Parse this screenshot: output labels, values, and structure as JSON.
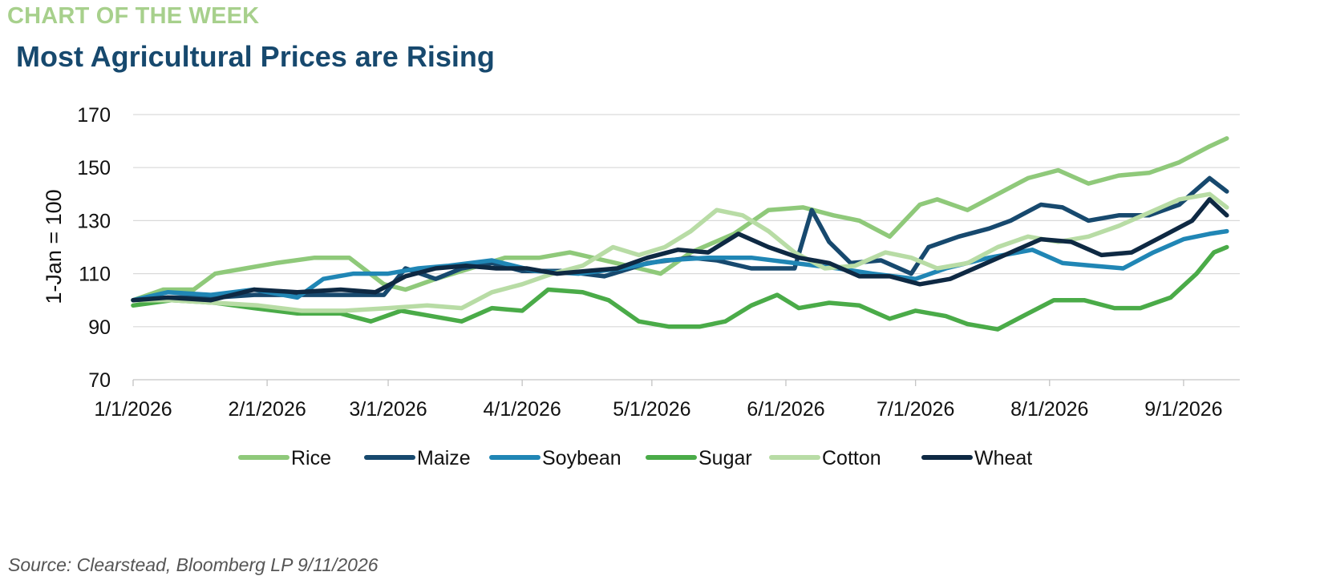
{
  "header": {
    "kicker": "CHART OF THE WEEK",
    "title": "Most Agricultural Prices are Rising"
  },
  "footer": {
    "source": "Source: Clearstead, Bloomberg LP 9/11/2026"
  },
  "chart_data": {
    "type": "line",
    "title": "Most Agricultural Prices are Rising",
    "xlabel": "",
    "ylabel": "1-Jan = 100",
    "ylim": [
      70,
      170
    ],
    "yticks": [
      70,
      90,
      110,
      130,
      150,
      170
    ],
    "xlim": [
      "2026-01-01",
      "2026-09-14"
    ],
    "xticks": [
      "1/1/2026",
      "2/1/2026",
      "3/1/2026",
      "4/1/2026",
      "5/1/2026",
      "6/1/2026",
      "7/1/2026",
      "8/1/2026",
      "9/1/2026"
    ],
    "xtick_dates": [
      "2026-01-01",
      "2026-02-01",
      "2026-03-01",
      "2026-04-01",
      "2026-05-01",
      "2026-06-01",
      "2026-07-01",
      "2026-08-01",
      "2026-09-01"
    ],
    "grid": "horizontal",
    "legend": "bottom",
    "series": [
      {
        "name": "Rice",
        "color": "#8fc97a",
        "points": [
          [
            "2026-01-01",
            100
          ],
          [
            "2026-01-08",
            104
          ],
          [
            "2026-01-15",
            104
          ],
          [
            "2026-01-20",
            110
          ],
          [
            "2026-01-27",
            112
          ],
          [
            "2026-02-03",
            114
          ],
          [
            "2026-02-12",
            116
          ],
          [
            "2026-02-20",
            116
          ],
          [
            "2026-02-28",
            106
          ],
          [
            "2026-03-05",
            104
          ],
          [
            "2026-03-12",
            108
          ],
          [
            "2026-03-20",
            112
          ],
          [
            "2026-03-28",
            116
          ],
          [
            "2026-04-05",
            116
          ],
          [
            "2026-04-12",
            118
          ],
          [
            "2026-04-20",
            115
          ],
          [
            "2026-04-28",
            112
          ],
          [
            "2026-05-03",
            110
          ],
          [
            "2026-05-10",
            118
          ],
          [
            "2026-05-20",
            125
          ],
          [
            "2026-05-28",
            134
          ],
          [
            "2026-06-05",
            135
          ],
          [
            "2026-06-12",
            132
          ],
          [
            "2026-06-18",
            130
          ],
          [
            "2026-06-25",
            124
          ],
          [
            "2026-07-02",
            136
          ],
          [
            "2026-07-06",
            138
          ],
          [
            "2026-07-13",
            134
          ],
          [
            "2026-07-20",
            140
          ],
          [
            "2026-07-27",
            146
          ],
          [
            "2026-08-03",
            149
          ],
          [
            "2026-08-10",
            144
          ],
          [
            "2026-08-17",
            147
          ],
          [
            "2026-08-24",
            148
          ],
          [
            "2026-08-31",
            152
          ],
          [
            "2026-09-07",
            158
          ],
          [
            "2026-09-11",
            161
          ]
        ]
      },
      {
        "name": "Maize",
        "color": "#17496e",
        "points": [
          [
            "2026-01-01",
            100
          ],
          [
            "2026-01-10",
            101
          ],
          [
            "2026-01-20",
            101
          ],
          [
            "2026-01-29",
            102
          ],
          [
            "2026-02-08",
            102
          ],
          [
            "2026-02-18",
            102
          ],
          [
            "2026-02-28",
            102
          ],
          [
            "2026-03-05",
            112
          ],
          [
            "2026-03-12",
            108
          ],
          [
            "2026-03-18",
            112
          ],
          [
            "2026-03-25",
            114
          ],
          [
            "2026-04-01",
            111
          ],
          [
            "2026-04-10",
            111
          ],
          [
            "2026-04-20",
            109
          ],
          [
            "2026-04-30",
            114
          ],
          [
            "2026-05-10",
            116
          ],
          [
            "2026-05-16",
            115
          ],
          [
            "2026-05-24",
            112
          ],
          [
            "2026-06-03",
            112
          ],
          [
            "2026-06-07",
            134
          ],
          [
            "2026-06-11",
            122
          ],
          [
            "2026-06-16",
            114
          ],
          [
            "2026-06-23",
            115
          ],
          [
            "2026-06-30",
            110
          ],
          [
            "2026-07-04",
            120
          ],
          [
            "2026-07-11",
            124
          ],
          [
            "2026-07-18",
            127
          ],
          [
            "2026-07-23",
            130
          ],
          [
            "2026-07-30",
            136
          ],
          [
            "2026-08-04",
            135
          ],
          [
            "2026-08-10",
            130
          ],
          [
            "2026-08-17",
            132
          ],
          [
            "2026-08-24",
            132
          ],
          [
            "2026-08-31",
            136
          ],
          [
            "2026-09-07",
            146
          ],
          [
            "2026-09-11",
            141
          ]
        ]
      },
      {
        "name": "Soybean",
        "color": "#2086b5",
        "points": [
          [
            "2026-01-01",
            100
          ],
          [
            "2026-01-09",
            103
          ],
          [
            "2026-01-19",
            102
          ],
          [
            "2026-01-29",
            104
          ],
          [
            "2026-02-08",
            101
          ],
          [
            "2026-02-14",
            108
          ],
          [
            "2026-02-21",
            110
          ],
          [
            "2026-03-01",
            110
          ],
          [
            "2026-03-08",
            112
          ],
          [
            "2026-03-15",
            113
          ],
          [
            "2026-03-25",
            115
          ],
          [
            "2026-04-04",
            111
          ],
          [
            "2026-04-14",
            110
          ],
          [
            "2026-04-24",
            112
          ],
          [
            "2026-05-04",
            115
          ],
          [
            "2026-05-14",
            116
          ],
          [
            "2026-05-24",
            116
          ],
          [
            "2026-06-03",
            114
          ],
          [
            "2026-06-13",
            112
          ],
          [
            "2026-06-21",
            110
          ],
          [
            "2026-07-01",
            108
          ],
          [
            "2026-07-08",
            112
          ],
          [
            "2026-07-18",
            116
          ],
          [
            "2026-07-28",
            119
          ],
          [
            "2026-08-04",
            114
          ],
          [
            "2026-08-11",
            113
          ],
          [
            "2026-08-18",
            112
          ],
          [
            "2026-08-25",
            118
          ],
          [
            "2026-09-01",
            123
          ],
          [
            "2026-09-07",
            125
          ],
          [
            "2026-09-11",
            126
          ]
        ]
      },
      {
        "name": "Sugar",
        "color": "#4aab48",
        "points": [
          [
            "2026-01-01",
            98
          ],
          [
            "2026-01-10",
            100
          ],
          [
            "2026-01-20",
            99
          ],
          [
            "2026-01-29",
            97
          ],
          [
            "2026-02-08",
            95
          ],
          [
            "2026-02-18",
            95
          ],
          [
            "2026-02-25",
            92
          ],
          [
            "2026-03-04",
            96
          ],
          [
            "2026-03-11",
            94
          ],
          [
            "2026-03-18",
            92
          ],
          [
            "2026-03-25",
            97
          ],
          [
            "2026-04-01",
            96
          ],
          [
            "2026-04-07",
            104
          ],
          [
            "2026-04-15",
            103
          ],
          [
            "2026-04-21",
            100
          ],
          [
            "2026-04-28",
            92
          ],
          [
            "2026-05-05",
            90
          ],
          [
            "2026-05-12",
            90
          ],
          [
            "2026-05-18",
            92
          ],
          [
            "2026-05-24",
            98
          ],
          [
            "2026-05-30",
            102
          ],
          [
            "2026-06-04",
            97
          ],
          [
            "2026-06-11",
            99
          ],
          [
            "2026-06-18",
            98
          ],
          [
            "2026-06-25",
            93
          ],
          [
            "2026-07-01",
            96
          ],
          [
            "2026-07-08",
            94
          ],
          [
            "2026-07-13",
            91
          ],
          [
            "2026-07-20",
            89
          ],
          [
            "2026-07-27",
            95
          ],
          [
            "2026-08-02",
            100
          ],
          [
            "2026-08-09",
            100
          ],
          [
            "2026-08-16",
            97
          ],
          [
            "2026-08-22",
            97
          ],
          [
            "2026-08-29",
            101
          ],
          [
            "2026-09-04",
            110
          ],
          [
            "2026-09-08",
            118
          ],
          [
            "2026-09-11",
            120
          ]
        ]
      },
      {
        "name": "Cotton",
        "color": "#b8dca5",
        "points": [
          [
            "2026-01-01",
            100
          ],
          [
            "2026-01-10",
            100
          ],
          [
            "2026-01-20",
            99
          ],
          [
            "2026-01-30",
            98
          ],
          [
            "2026-02-09",
            96
          ],
          [
            "2026-02-19",
            96
          ],
          [
            "2026-03-01",
            97
          ],
          [
            "2026-03-10",
            98
          ],
          [
            "2026-03-18",
            97
          ],
          [
            "2026-03-25",
            103
          ],
          [
            "2026-04-01",
            106
          ],
          [
            "2026-04-08",
            110
          ],
          [
            "2026-04-15",
            113
          ],
          [
            "2026-04-22",
            120
          ],
          [
            "2026-04-28",
            117
          ],
          [
            "2026-05-04",
            120
          ],
          [
            "2026-05-10",
            126
          ],
          [
            "2026-05-16",
            134
          ],
          [
            "2026-05-22",
            132
          ],
          [
            "2026-05-28",
            126
          ],
          [
            "2026-06-03",
            118
          ],
          [
            "2026-06-10",
            112
          ],
          [
            "2026-06-17",
            113
          ],
          [
            "2026-06-24",
            118
          ],
          [
            "2026-06-30",
            116
          ],
          [
            "2026-07-06",
            112
          ],
          [
            "2026-07-13",
            114
          ],
          [
            "2026-07-20",
            120
          ],
          [
            "2026-07-27",
            124
          ],
          [
            "2026-08-03",
            122
          ],
          [
            "2026-08-10",
            124
          ],
          [
            "2026-08-17",
            128
          ],
          [
            "2026-08-24",
            133
          ],
          [
            "2026-08-31",
            138
          ],
          [
            "2026-09-07",
            140
          ],
          [
            "2026-09-11",
            135
          ]
        ]
      },
      {
        "name": "Wheat",
        "color": "#0e2943",
        "points": [
          [
            "2026-01-01",
            100
          ],
          [
            "2026-01-09",
            101
          ],
          [
            "2026-01-19",
            100
          ],
          [
            "2026-01-29",
            104
          ],
          [
            "2026-02-08",
            103
          ],
          [
            "2026-02-18",
            104
          ],
          [
            "2026-02-26",
            103
          ],
          [
            "2026-03-05",
            109
          ],
          [
            "2026-03-12",
            112
          ],
          [
            "2026-03-19",
            113
          ],
          [
            "2026-03-26",
            112
          ],
          [
            "2026-04-02",
            112
          ],
          [
            "2026-04-09",
            110
          ],
          [
            "2026-04-16",
            111
          ],
          [
            "2026-04-23",
            112
          ],
          [
            "2026-04-30",
            116
          ],
          [
            "2026-05-07",
            119
          ],
          [
            "2026-05-14",
            118
          ],
          [
            "2026-05-21",
            125
          ],
          [
            "2026-05-28",
            120
          ],
          [
            "2026-06-04",
            116
          ],
          [
            "2026-06-11",
            114
          ],
          [
            "2026-06-18",
            109
          ],
          [
            "2026-06-25",
            109
          ],
          [
            "2026-07-02",
            106
          ],
          [
            "2026-07-09",
            108
          ],
          [
            "2026-07-16",
            113
          ],
          [
            "2026-07-23",
            118
          ],
          [
            "2026-07-30",
            123
          ],
          [
            "2026-08-06",
            122
          ],
          [
            "2026-08-13",
            117
          ],
          [
            "2026-08-20",
            118
          ],
          [
            "2026-08-27",
            124
          ],
          [
            "2026-09-03",
            130
          ],
          [
            "2026-09-07",
            138
          ],
          [
            "2026-09-11",
            132
          ]
        ]
      }
    ]
  }
}
